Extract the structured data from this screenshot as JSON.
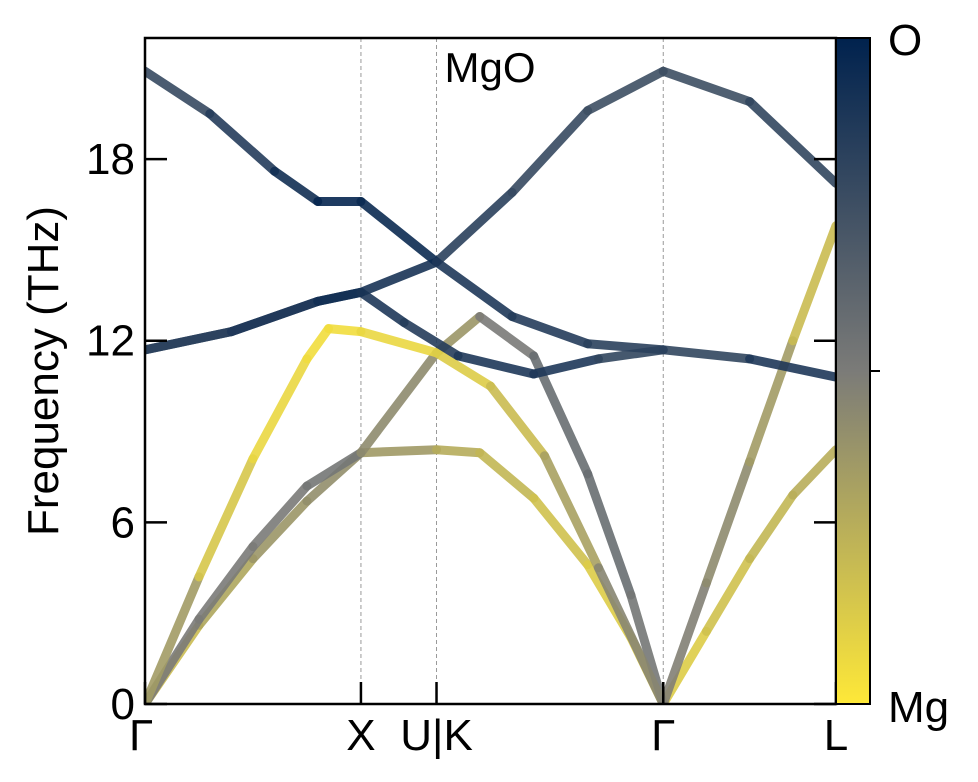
{
  "chart_data": {
    "type": "line",
    "title": "MgO",
    "xlabel": "",
    "ylabel": "Frequency (THz)",
    "ylim": [
      0,
      22
    ],
    "yticks": [
      "0",
      "6",
      "12",
      "18"
    ],
    "ytick_values": [
      0,
      6,
      12,
      18
    ],
    "xticks": [
      "Γ",
      "X",
      "U|K",
      "Γ",
      "L"
    ],
    "xtick_positions": [
      0,
      1,
      1.35,
      2.4,
      3.2
    ],
    "xlim": [
      0,
      3.2
    ],
    "grid": "dashed vertical lines at high-symmetry points X, U|K and Γ",
    "colorbar": {
      "top_label": "O",
      "bottom_label": "Mg",
      "top_color": "#00224e",
      "mid_color": "#7b7b78",
      "bottom_color": "#fee838"
    },
    "series": [
      {
        "x": [
          0,
          0.25,
          0.5,
          0.75,
          1,
          1.35,
          1.55,
          1.8,
          2.05,
          2.25,
          2.4,
          2.6,
          2.8,
          3.0,
          3.2
        ],
        "values": [
          0,
          2.6,
          4.8,
          6.7,
          8.3,
          8.4,
          8.3,
          6.8,
          4.6,
          2.2,
          0,
          2.4,
          4.8,
          6.9,
          8.4
        ],
        "color_weight": [
          0.15,
          0.25,
          0.35,
          0.4,
          0.42,
          0.3,
          0.25,
          0.2,
          0.15,
          0.1,
          0.1,
          0.15,
          0.2,
          0.25,
          0.28
        ]
      },
      {
        "x": [
          0,
          0.25,
          0.5,
          0.75,
          1,
          1.35,
          1.55,
          1.8,
          2.05,
          2.25,
          2.4
        ],
        "values": [
          0,
          2.8,
          5.2,
          7.2,
          8.3,
          11.6,
          12.8,
          11.5,
          7.6,
          3.6,
          0
        ],
        "color_weight": [
          0.5,
          0.5,
          0.5,
          0.5,
          0.55,
          0.3,
          0.45,
          0.55,
          0.6,
          0.55,
          0.5
        ]
      },
      {
        "x": [
          0,
          0.25,
          0.5,
          0.75,
          0.85,
          1,
          1.35,
          1.6,
          1.85,
          2.1,
          2.4,
          2.6,
          2.8,
          3.0,
          3.2
        ],
        "values": [
          0,
          4.2,
          8.1,
          11.4,
          12.4,
          12.3,
          11.6,
          10.5,
          8.2,
          4.5,
          0,
          4.0,
          8.0,
          12.0,
          15.8
        ],
        "color_weight": [
          0.5,
          0.2,
          0.1,
          0.05,
          0.05,
          0.05,
          0.1,
          0.15,
          0.25,
          0.4,
          0.5,
          0.45,
          0.4,
          0.3,
          0.1
        ]
      },
      {
        "x": [
          0,
          0.4,
          0.8,
          1,
          1.2,
          1.45,
          1.8,
          2.1,
          2.4,
          2.8,
          3.2
        ],
        "values": [
          11.7,
          12.3,
          13.3,
          13.6,
          12.6,
          11.5,
          10.9,
          11.4,
          11.7,
          11.4,
          10.8
        ],
        "color_weight": [
          0.8,
          0.85,
          0.9,
          0.9,
          0.85,
          0.85,
          0.9,
          0.85,
          0.75,
          0.85,
          0.9
        ]
      },
      {
        "x": [
          0,
          0.4,
          0.8,
          1,
          1.35,
          1.7,
          2.05,
          2.4,
          2.8,
          3.2
        ],
        "values": [
          11.7,
          12.3,
          13.3,
          13.6,
          14.6,
          16.9,
          19.6,
          20.9,
          19.9,
          17.2
        ],
        "color_weight": [
          0.8,
          0.85,
          0.9,
          0.95,
          0.85,
          0.8,
          0.75,
          0.75,
          0.75,
          0.85
        ]
      },
      {
        "x": [
          0,
          0.3,
          0.6,
          0.8,
          1,
          1.35,
          1.7,
          2.05,
          2.4
        ],
        "values": [
          20.9,
          19.5,
          17.6,
          16.6,
          16.6,
          14.6,
          12.8,
          11.9,
          11.7
        ],
        "color_weight": [
          0.75,
          0.8,
          0.9,
          0.95,
          1.0,
          0.9,
          0.85,
          0.85,
          0.8
        ]
      }
    ]
  }
}
